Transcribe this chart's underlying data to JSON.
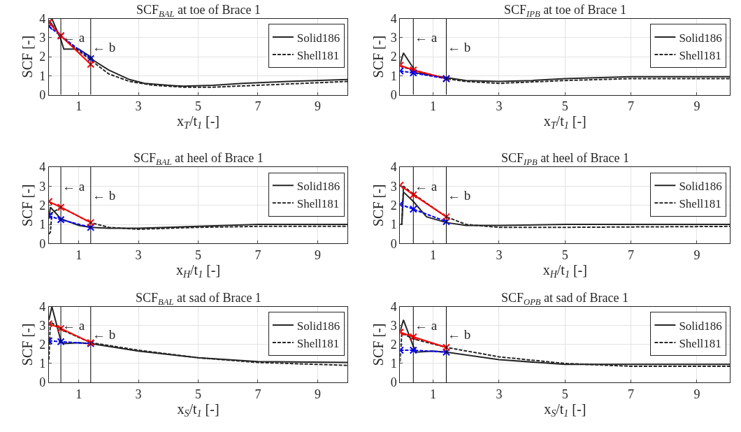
{
  "chart_data": [
    {
      "type": "line",
      "title": "SCF$_{BAL}$ at toe of Brace 1",
      "xlabel": "x$_{T}$/t$_{1}$ [-]",
      "ylabel": "SCF [-]",
      "xlim": [
        0,
        10
      ],
      "ylim": [
        0,
        4
      ],
      "xticks": [
        1,
        3,
        5,
        7,
        9
      ],
      "yticks": [
        0,
        1,
        2,
        3,
        4
      ],
      "grid": true,
      "legend": "top right",
      "ref_lines": [
        {
          "axis": "x",
          "value": 0.4,
          "label": "← a"
        },
        {
          "axis": "x",
          "value": 1.4,
          "label": "← b"
        }
      ],
      "series": [
        {
          "name": "Solid186",
          "color": "#262626",
          "line_style": "solid",
          "marker": "none",
          "x": [
            0.05,
            0.1,
            0.4,
            0.5,
            1.0,
            1.4,
            1.5,
            2,
            2.7,
            3.2,
            4,
            4.5,
            5.5,
            6.5,
            8,
            10
          ],
          "values": [
            4.0,
            4.0,
            2.9,
            2.4,
            2.4,
            2.0,
            1.8,
            1.3,
            0.8,
            0.6,
            0.5,
            0.45,
            0.5,
            0.6,
            0.7,
            0.8
          ]
        },
        {
          "name": "Shell181",
          "color": "#262626",
          "line_style": "dashed",
          "marker": "none",
          "x": [
            0,
            0.4,
            1,
            1.5,
            2,
            2.7,
            3.5,
            4.5,
            5.5,
            7,
            8.5,
            10
          ],
          "values": [
            3.9,
            3.1,
            2.3,
            1.7,
            1.1,
            0.7,
            0.5,
            0.4,
            0.4,
            0.5,
            0.6,
            0.7
          ]
        },
        {
          "color": "#0000ff",
          "line_style": "dashed",
          "marker": "cross",
          "x": [
            0,
            0.4,
            1.4
          ],
          "values": [
            3.6,
            3.1,
            1.9
          ]
        },
        {
          "color": "#ff0000",
          "line_style": "solid",
          "marker": "cross",
          "x": [
            0,
            0.4,
            1.4
          ],
          "values": [
            3.8,
            3.1,
            1.6
          ]
        }
      ]
    },
    {
      "type": "line",
      "title": "SCF$_{IPB}$ at toe of Brace 1",
      "xlabel": "x$_{T}$/t$_{1}$ [-]",
      "ylabel": "SCF [-]",
      "xlim": [
        0,
        10
      ],
      "ylim": [
        0,
        4
      ],
      "xticks": [
        1,
        3,
        5,
        7,
        9
      ],
      "yticks": [
        0,
        1,
        2,
        3,
        4
      ],
      "grid": true,
      "legend": "top right",
      "ref_lines": [
        {
          "axis": "x",
          "value": 0.4,
          "label": "← a"
        },
        {
          "axis": "x",
          "value": 1.4,
          "label": "← b"
        }
      ],
      "series": [
        {
          "name": "Solid186",
          "color": "#262626",
          "line_style": "solid",
          "marker": "none",
          "x": [
            0,
            0.1,
            0.4,
            0.5,
            1.4,
            2,
            3,
            4,
            5,
            7,
            10
          ],
          "values": [
            1.6,
            2.2,
            1.4,
            1.15,
            0.9,
            0.75,
            0.7,
            0.75,
            0.85,
            0.95,
            0.95
          ]
        },
        {
          "name": "Shell181",
          "color": "#262626",
          "line_style": "dashed",
          "marker": "none",
          "x": [
            0,
            0.4,
            1.4,
            2,
            3,
            5,
            7,
            10
          ],
          "values": [
            1.5,
            1.3,
            0.85,
            0.7,
            0.6,
            0.75,
            0.85,
            0.85
          ]
        },
        {
          "color": "#ff0000",
          "line_style": "solid",
          "marker": "cross",
          "x": [
            0,
            0.4,
            1.4
          ],
          "values": [
            1.55,
            1.3,
            0.85
          ]
        },
        {
          "color": "#0000ff",
          "line_style": "dashed",
          "marker": "cross",
          "x": [
            0,
            0.4,
            1.4
          ],
          "values": [
            1.25,
            1.15,
            0.85
          ]
        }
      ]
    },
    {
      "type": "line",
      "title": "SCF$_{BAL}$ at heel of Brace 1",
      "xlabel": "x$_{H}$/t$_{1}$ [-]",
      "ylabel": "SCF [-]",
      "xlim": [
        0,
        10
      ],
      "ylim": [
        0,
        4
      ],
      "xticks": [
        1,
        3,
        5,
        7,
        9
      ],
      "yticks": [
        0,
        1,
        2,
        3,
        4
      ],
      "grid": true,
      "legend": "top right",
      "ref_lines": [
        {
          "axis": "x",
          "value": 0.4,
          "label": "← a"
        },
        {
          "axis": "x",
          "value": 1.4,
          "label": "← b"
        }
      ],
      "series": [
        {
          "name": "Solid186",
          "color": "#262626",
          "line_style": "solid",
          "marker": "none",
          "x": [
            0,
            0.05,
            0.4,
            1,
            1.4,
            2,
            3,
            5,
            7,
            10
          ],
          "values": [
            1.3,
            1.9,
            1.3,
            0.95,
            0.85,
            0.8,
            0.8,
            0.9,
            1.0,
            1.0
          ]
        },
        {
          "name": "Shell181",
          "color": "#262626",
          "line_style": "dashed",
          "marker": "none",
          "x": [
            0,
            0.05,
            0.1,
            0.4,
            1.4,
            2,
            3,
            5,
            7,
            10
          ],
          "values": [
            0.5,
            0.6,
            1.6,
            1.9,
            1.1,
            0.85,
            0.75,
            0.85,
            0.9,
            0.9
          ]
        },
        {
          "color": "#0000ff",
          "line_style": "dashed",
          "marker": "cross",
          "x": [
            0,
            0.4,
            1.4
          ],
          "values": [
            1.45,
            1.25,
            0.85
          ]
        },
        {
          "color": "#ff0000",
          "line_style": "solid",
          "marker": "cross",
          "x": [
            0,
            0.4,
            1.4
          ],
          "values": [
            2.2,
            1.9,
            1.1
          ]
        }
      ]
    },
    {
      "type": "line",
      "title": "SCF$_{IPB}$ at heel of Brace 1",
      "xlabel": "x$_{H}$/t$_{1}$ [-]",
      "ylabel": "SCF [-]",
      "xlim": [
        0,
        10
      ],
      "ylim": [
        0,
        4
      ],
      "xticks": [
        1,
        3,
        5,
        7,
        9
      ],
      "yticks": [
        0,
        1,
        2,
        3,
        4
      ],
      "grid": true,
      "legend": "top right",
      "ref_lines": [
        {
          "axis": "x",
          "value": 0.4,
          "label": "← a"
        },
        {
          "axis": "x",
          "value": 1.4,
          "label": "← b"
        }
      ],
      "series": [
        {
          "name": "Solid186",
          "color": "#262626",
          "line_style": "solid",
          "marker": "none",
          "x": [
            0.05,
            0.1,
            0.4,
            0.8,
            1.4,
            2,
            3,
            5,
            10
          ],
          "values": [
            1.0,
            2.7,
            2.2,
            1.4,
            1.1,
            0.95,
            0.95,
            1.0,
            1.0
          ]
        },
        {
          "name": "Shell181",
          "color": "#262626",
          "line_style": "dashed",
          "marker": "none",
          "x": [
            0,
            0.05,
            0.1,
            0.4,
            1.4,
            2,
            3,
            5,
            10
          ],
          "values": [
            1.0,
            1.0,
            3.0,
            2.6,
            1.4,
            1.0,
            0.85,
            0.85,
            0.9
          ]
        },
        {
          "color": "#0000ff",
          "line_style": "dashed",
          "marker": "cross",
          "x": [
            0,
            0.4,
            1.4
          ],
          "values": [
            2.05,
            1.8,
            1.15
          ]
        },
        {
          "color": "#ff0000",
          "line_style": "solid",
          "marker": "cross",
          "x": [
            0,
            0.4,
            1.4
          ],
          "values": [
            3.05,
            2.55,
            1.4
          ]
        }
      ]
    },
    {
      "type": "line",
      "title": "SCF$_{BAL}$ at sad of Brace 1",
      "xlabel": "x$_{S}$/t$_{1}$ [-]",
      "ylabel": "SCF [-]",
      "xlim": [
        0,
        10
      ],
      "ylim": [
        0,
        4
      ],
      "xticks": [
        1,
        3,
        5,
        7,
        9
      ],
      "yticks": [
        0,
        1,
        2,
        3,
        4
      ],
      "grid": true,
      "legend": "top right",
      "ref_lines": [
        {
          "axis": "x",
          "value": 0.4,
          "label": "← a"
        },
        {
          "axis": "x",
          "value": 1.4,
          "label": "← b"
        }
      ],
      "series": [
        {
          "name": "Solid186",
          "color": "#262626",
          "line_style": "solid",
          "marker": "none",
          "x": [
            0,
            0.1,
            0.4,
            0.5,
            1,
            1.4,
            3,
            5,
            7,
            10
          ],
          "values": [
            3.3,
            4.0,
            2.2,
            2.05,
            2.1,
            2.05,
            1.65,
            1.3,
            1.1,
            1.05
          ]
        },
        {
          "name": "Shell181",
          "color": "#262626",
          "line_style": "dashed",
          "marker": "none",
          "x": [
            0,
            0.05,
            0.4,
            1.4,
            3,
            5,
            7,
            10
          ],
          "values": [
            1.2,
            3.2,
            2.8,
            2.1,
            1.7,
            1.3,
            1.05,
            0.9
          ]
        },
        {
          "color": "#0000ff",
          "line_style": "dashed",
          "marker": "cross",
          "x": [
            0,
            0.4,
            1.4
          ],
          "values": [
            2.2,
            2.15,
            2.05
          ]
        },
        {
          "color": "#ff0000",
          "line_style": "solid",
          "marker": "cross",
          "x": [
            0,
            0.4,
            1.4
          ],
          "values": [
            3.1,
            2.85,
            2.1
          ]
        }
      ]
    },
    {
      "type": "line",
      "title": "SCF$_{OPB}$ at sad of Brace 1",
      "xlabel": "x$_{S}$/t$_{1}$ [-]",
      "ylabel": "SCF [-]",
      "xlim": [
        0,
        10
      ],
      "ylim": [
        0,
        4
      ],
      "xticks": [
        1,
        3,
        5,
        7,
        9
      ],
      "yticks": [
        0,
        1,
        2,
        3,
        4
      ],
      "grid": true,
      "legend": "top right",
      "ref_lines": [
        {
          "axis": "x",
          "value": 0.4,
          "label": "← a"
        },
        {
          "axis": "x",
          "value": 1.4,
          "label": "← b"
        }
      ],
      "series": [
        {
          "name": "Solid186",
          "color": "#262626",
          "line_style": "solid",
          "marker": "none",
          "x": [
            0,
            0.1,
            0.4,
            0.5,
            1,
            1.4,
            3,
            5,
            7,
            10
          ],
          "values": [
            2.7,
            3.3,
            1.9,
            1.6,
            1.65,
            1.6,
            1.2,
            0.95,
            0.95,
            0.95
          ]
        },
        {
          "name": "Shell181",
          "color": "#262626",
          "line_style": "dashed",
          "marker": "none",
          "x": [
            0,
            0.05,
            0.4,
            1.4,
            3,
            5,
            7,
            10
          ],
          "values": [
            1.1,
            2.6,
            2.3,
            1.85,
            1.35,
            1.0,
            0.85,
            0.85
          ]
        },
        {
          "color": "#0000ff",
          "line_style": "dashed",
          "marker": "cross",
          "x": [
            0,
            0.4,
            1.4
          ],
          "values": [
            1.7,
            1.7,
            1.6
          ]
        },
        {
          "color": "#ff0000",
          "line_style": "solid",
          "marker": "cross",
          "x": [
            0,
            0.4,
            1.4
          ],
          "values": [
            2.65,
            2.4,
            1.85
          ]
        }
      ]
    }
  ]
}
